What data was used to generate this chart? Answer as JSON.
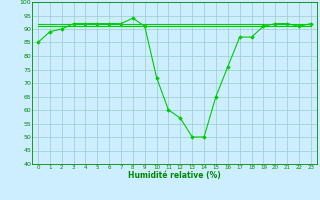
{
  "x": [
    0,
    1,
    2,
    3,
    4,
    5,
    6,
    7,
    8,
    9,
    10,
    11,
    12,
    13,
    14,
    15,
    16,
    17,
    18,
    19,
    20,
    21,
    22,
    23
  ],
  "y_main": [
    85,
    89,
    90,
    92,
    92,
    92,
    92,
    92,
    94,
    91,
    72,
    60,
    57,
    50,
    50,
    65,
    76,
    87,
    87,
    91,
    92,
    92,
    91,
    92
  ],
  "y_flat1": [
    91,
    91,
    91,
    91,
    91,
    91,
    91,
    91,
    91,
    91,
    91,
    91,
    91,
    91,
    91,
    91,
    91,
    91,
    91,
    91,
    91,
    91,
    91,
    91
  ],
  "y_flat2": [
    92,
    92,
    92,
    92,
    92,
    92,
    92,
    92,
    92,
    92,
    92,
    92,
    92,
    92,
    92,
    92,
    92,
    92,
    92,
    92,
    92,
    92,
    92,
    92
  ],
  "line_color": "#00cc00",
  "bg_color": "#cceeff",
  "grid_color": "#99cccc",
  "text_color": "#008800",
  "xlabel": "Humidité relative (%)",
  "ylim": [
    40,
    100
  ],
  "xlim": [
    -0.5,
    23.5
  ],
  "yticks": [
    40,
    45,
    50,
    55,
    60,
    65,
    70,
    75,
    80,
    85,
    90,
    95,
    100
  ],
  "xticks": [
    0,
    1,
    2,
    3,
    4,
    5,
    6,
    7,
    8,
    9,
    10,
    11,
    12,
    13,
    14,
    15,
    16,
    17,
    18,
    19,
    20,
    21,
    22,
    23
  ]
}
